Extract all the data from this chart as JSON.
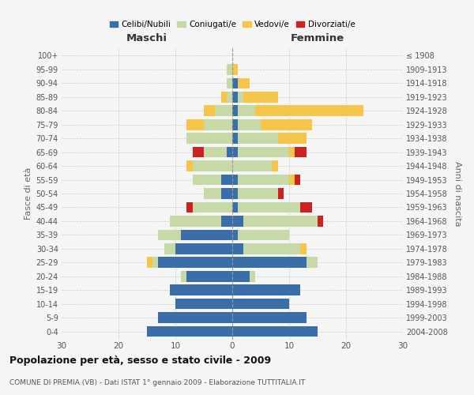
{
  "age_groups": [
    "0-4",
    "5-9",
    "10-14",
    "15-19",
    "20-24",
    "25-29",
    "30-34",
    "35-39",
    "40-44",
    "45-49",
    "50-54",
    "55-59",
    "60-64",
    "65-69",
    "70-74",
    "75-79",
    "80-84",
    "85-89",
    "90-94",
    "95-99",
    "100+"
  ],
  "birth_years": [
    "2004-2008",
    "1999-2003",
    "1994-1998",
    "1989-1993",
    "1984-1988",
    "1979-1983",
    "1974-1978",
    "1969-1973",
    "1964-1968",
    "1959-1963",
    "1954-1958",
    "1949-1953",
    "1944-1948",
    "1939-1943",
    "1934-1938",
    "1929-1933",
    "1924-1928",
    "1919-1923",
    "1914-1918",
    "1909-1913",
    "≤ 1908"
  ],
  "male": {
    "celibi": [
      15,
      13,
      10,
      11,
      8,
      13,
      10,
      9,
      2,
      0,
      2,
      2,
      0,
      1,
      0,
      0,
      0,
      0,
      0,
      0,
      0
    ],
    "coniugati": [
      0,
      0,
      0,
      0,
      1,
      1,
      2,
      4,
      9,
      7,
      3,
      5,
      7,
      4,
      8,
      5,
      3,
      1,
      1,
      1,
      0
    ],
    "vedovi": [
      0,
      0,
      0,
      0,
      0,
      1,
      0,
      0,
      0,
      0,
      0,
      0,
      1,
      0,
      0,
      3,
      2,
      1,
      0,
      0,
      0
    ],
    "divorziati": [
      0,
      0,
      0,
      0,
      0,
      0,
      0,
      0,
      0,
      1,
      0,
      0,
      0,
      2,
      0,
      0,
      0,
      0,
      0,
      0,
      0
    ]
  },
  "female": {
    "nubili": [
      15,
      13,
      10,
      12,
      3,
      13,
      2,
      1,
      2,
      1,
      1,
      1,
      0,
      1,
      1,
      1,
      1,
      1,
      1,
      0,
      0
    ],
    "coniugate": [
      0,
      0,
      0,
      0,
      1,
      2,
      10,
      9,
      13,
      11,
      7,
      9,
      7,
      9,
      7,
      4,
      3,
      1,
      0,
      0,
      0
    ],
    "vedove": [
      0,
      0,
      0,
      0,
      0,
      0,
      1,
      0,
      0,
      0,
      0,
      1,
      1,
      1,
      5,
      9,
      19,
      6,
      2,
      1,
      0
    ],
    "divorziate": [
      0,
      0,
      0,
      0,
      0,
      0,
      0,
      0,
      1,
      2,
      1,
      1,
      0,
      2,
      0,
      0,
      0,
      0,
      0,
      0,
      0
    ]
  },
  "colors": {
    "celibi_nubili": "#3A6EA8",
    "coniugati": "#C8D9A8",
    "vedovi": "#F5C64A",
    "divorziati": "#CC2222"
  },
  "title": "Popolazione per età, sesso e stato civile - 2009",
  "subtitle": "COMUNE DI PREMIA (VB) - Dati ISTAT 1° gennaio 2009 - Elaborazione TUTTITALIA.IT",
  "xlabel_left": "Maschi",
  "xlabel_right": "Femmine",
  "ylabel_left": "Fasce di età",
  "ylabel_right": "Anni di nascita",
  "xlim": 30,
  "background_color": "#f5f5f5"
}
